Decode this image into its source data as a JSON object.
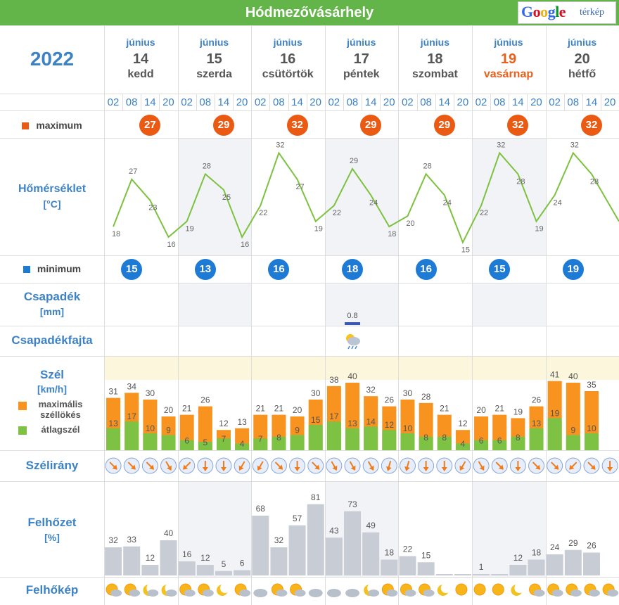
{
  "header": {
    "title": "Hódmezővásárhely",
    "map_button": {
      "logo": "Google",
      "sub": "térkép",
      "logo_colors": [
        "#3369e8",
        "#d50f25",
        "#eeb211",
        "#3369e8",
        "#009925",
        "#d50f25"
      ]
    }
  },
  "year": "2022",
  "days": [
    {
      "month": "június",
      "day": "14",
      "name": "kedd",
      "sunday": false
    },
    {
      "month": "június",
      "day": "15",
      "name": "szerda",
      "sunday": false
    },
    {
      "month": "június",
      "day": "16",
      "name": "csütörtök",
      "sunday": false
    },
    {
      "month": "június",
      "day": "17",
      "name": "péntek",
      "sunday": false
    },
    {
      "month": "június",
      "day": "18",
      "name": "szombat",
      "sunday": false
    },
    {
      "month": "június",
      "day": "19",
      "name": "vasárnap",
      "sunday": true
    },
    {
      "month": "június",
      "day": "20",
      "name": "hétfő",
      "sunday": false
    }
  ],
  "hours": [
    "02",
    "08",
    "14",
    "20"
  ],
  "labels": {
    "maximum": "maximum",
    "minimum": "minimum",
    "temp_title": "Hőmérséklet",
    "temp_unit": "[°C]",
    "precip_title": "Csapadék",
    "precip_unit": "[mm]",
    "precip_type": "Csapadékfajta",
    "wind_title": "Szél",
    "wind_unit": "[km/h]",
    "gust_legend": "maximális széllökés",
    "avg_legend": "átlagszél",
    "wind_dir": "Szélirány",
    "cloud_title": "Felhőzet",
    "cloud_unit": "[%]",
    "cloud_icon_title": "Felhőkép"
  },
  "colors": {
    "title_bar": "#63b54a",
    "label_blue": "#3d82c4",
    "max_orange": "#ea5a12",
    "min_blue": "#1d7bd6",
    "temp_line": "#7cc23f",
    "gust_orange": "#f7931e",
    "avg_green": "#7dc242",
    "cloud_bar": "#c8ccd4",
    "precip_bar": "#3c58b5"
  },
  "chart_data": {
    "type": "weather-forecast",
    "max_temp": [
      27,
      29,
      32,
      29,
      29,
      32,
      32
    ],
    "min_temp": [
      15,
      13,
      16,
      18,
      16,
      15,
      19
    ],
    "temperature": [
      18,
      27,
      23,
      16,
      19,
      28,
      25,
      16,
      22,
      32,
      27,
      19,
      22,
      29,
      24,
      18,
      20,
      28,
      24,
      15,
      22,
      32,
      28,
      19,
      24,
      32,
      28,
      null
    ],
    "temperature_trailing_value": 19,
    "precipitation": {
      "values": [
        0,
        0,
        0,
        0,
        0,
        0,
        0,
        0,
        0,
        0,
        0,
        0,
        0,
        0.8,
        0,
        0,
        0,
        0,
        0,
        0,
        0,
        0,
        0,
        0,
        0,
        0,
        0,
        0
      ],
      "label_index": 13,
      "label": "0.8"
    },
    "precipitation_type_index": 13,
    "precipitation_type_icon": "sun-cloud-rain-icon",
    "wind_gust": [
      31,
      34,
      30,
      20,
      21,
      26,
      12,
      13,
      21,
      21,
      20,
      30,
      38,
      40,
      32,
      26,
      30,
      28,
      21,
      12,
      20,
      21,
      19,
      26,
      41,
      40,
      35,
      null
    ],
    "wind_avg": [
      13,
      17,
      10,
      9,
      6,
      5,
      7,
      4,
      7,
      8,
      9,
      15,
      17,
      13,
      14,
      12,
      10,
      8,
      8,
      4,
      6,
      6,
      8,
      13,
      19,
      9,
      10,
      null
    ],
    "wind_gust_visible": [
      31,
      34,
      30,
      20,
      21,
      26,
      12,
      13,
      21,
      21,
      20,
      30,
      38,
      40,
      32,
      26,
      30,
      28,
      21,
      12,
      20,
      21,
      19,
      26,
      41,
      40,
      35
    ],
    "wind_direction_deg": [
      315,
      315,
      315,
      330,
      45,
      0,
      0,
      30,
      30,
      315,
      0,
      315,
      330,
      330,
      330,
      15,
      15,
      0,
      0,
      30,
      330,
      315,
      0,
      315,
      315,
      45,
      315,
      0
    ],
    "cloud_cover": [
      32,
      33,
      12,
      40,
      16,
      12,
      5,
      6,
      68,
      32,
      57,
      81,
      43,
      73,
      49,
      18,
      22,
      15,
      0,
      0,
      1,
      0,
      12,
      18,
      24,
      29,
      26,
      null
    ],
    "cloud_cover_labels": [
      "32",
      "33",
      "12",
      "40",
      "16",
      "12",
      "5",
      "6",
      "68",
      "32",
      "57",
      "81",
      "43",
      "73",
      "49",
      "18",
      "22",
      "15",
      "",
      "",
      "1",
      "",
      "12",
      "18",
      "24",
      "29",
      "26",
      ""
    ],
    "cloud_icons": [
      "sun-cloud-icon",
      "sun-cloud-icon",
      "moon-cloud-icon",
      "moon-cloud-icon",
      "sun-cloud-icon",
      "sun-cloud-icon",
      "moon-icon",
      "sun-cloud-icon",
      "cloud-icon",
      "sun-cloud-icon",
      "sun-cloud-icon",
      "cloud-icon",
      "cloud-icon",
      "cloud-icon",
      "moon-cloud-icon",
      "sun-cloud-icon",
      "sun-cloud-icon",
      "sun-cloud-icon",
      "moon-icon",
      "sun-icon",
      "sun-icon",
      "sun-icon",
      "moon-icon",
      "sun-cloud-icon",
      "sun-cloud-icon",
      "sun-cloud-icon",
      "sun-cloud-icon",
      "sun-cloud-icon"
    ]
  }
}
